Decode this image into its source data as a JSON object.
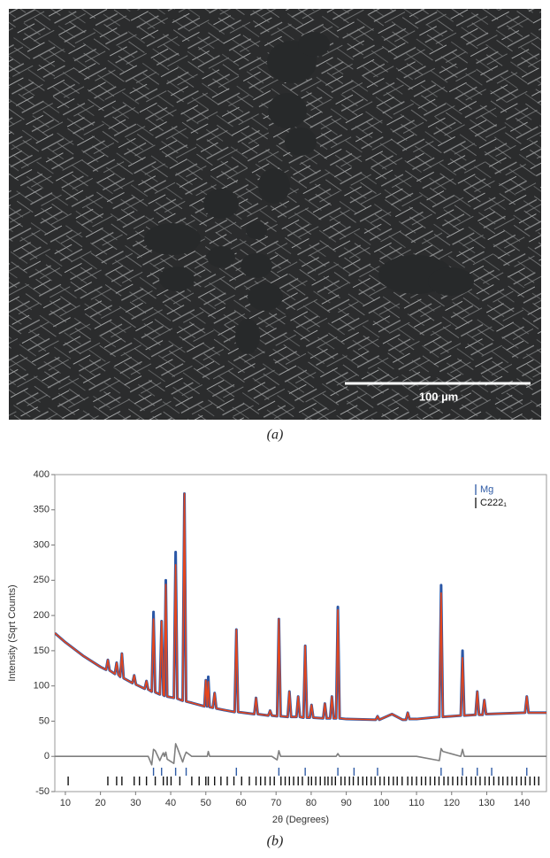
{
  "figure": {
    "panel_a": {
      "caption": "(a)",
      "scale_bar": "100 µm"
    },
    "panel_b": {
      "caption": "(b)"
    }
  },
  "chart_data": {
    "type": "line",
    "x_label": "2θ (Degrees)",
    "y_label": "Intensity (Sqrt Counts)",
    "xlim": [
      7,
      147
    ],
    "xticks": [
      10,
      20,
      30,
      40,
      50,
      60,
      70,
      80,
      90,
      100,
      110,
      120,
      130,
      140
    ],
    "ylim": [
      -50,
      400
    ],
    "yticks": [
      -50,
      0,
      50,
      100,
      150,
      200,
      250,
      300,
      350,
      400
    ],
    "x": [
      7,
      10,
      15,
      20,
      21.6,
      22.1,
      22.6,
      24.1,
      24.6,
      25.1,
      25.6,
      26.1,
      26.6,
      29.1,
      29.6,
      30.1,
      32.6,
      33.1,
      33.6,
      34.6,
      35.1,
      35.6,
      36.9,
      37.4,
      37.9,
      38.2,
      38.6,
      39.0,
      40.9,
      41.4,
      41.9,
      43.4,
      43.9,
      44.4,
      46,
      49.6,
      50.0,
      50.4,
      50.7,
      51.1,
      52.0,
      52.5,
      53.0,
      55,
      58.2,
      58.7,
      59.2,
      63.8,
      64.3,
      64.8,
      67.8,
      68.3,
      68.8,
      70.3,
      70.8,
      71.3,
      73.3,
      73.8,
      74.3,
      75.8,
      76.3,
      76.8,
      77.8,
      78.3,
      78.8,
      79.6,
      80.1,
      80.6,
      83.4,
      83.9,
      84.4,
      85.4,
      85.9,
      86.4,
      87.1,
      87.6,
      88.1,
      90,
      98.4,
      98.9,
      99.4,
      103,
      106,
      107.0,
      107.5,
      108.0,
      110,
      116.5,
      117.0,
      117.5,
      122.6,
      123.1,
      123.6,
      126.8,
      127.3,
      127.8,
      128.8,
      129.3,
      129.8,
      135,
      140.9,
      141.4,
      141.9,
      147
    ],
    "series": [
      {
        "color": "#2b57a6",
        "width": 3,
        "values": [
          175,
          162,
          143,
          127,
          123,
          137,
          122,
          117,
          133,
          116,
          113,
          146,
          111,
          104,
          115,
          102,
          96,
          107,
          95,
          92,
          205,
          91,
          88,
          192,
          87,
          86,
          250,
          85,
          83,
          290,
          82,
          79,
          373,
          78,
          76,
          71,
          108,
          71,
          113,
          70,
          69,
          90,
          68,
          66,
          63,
          180,
          63,
          60,
          83,
          60,
          58,
          65,
          58,
          57,
          195,
          57,
          56,
          92,
          56,
          56,
          85,
          56,
          55,
          157,
          55,
          55,
          73,
          55,
          54,
          75,
          54,
          54,
          85,
          54,
          54,
          212,
          54,
          53,
          52,
          57,
          52,
          60,
          52,
          52,
          62,
          53,
          53,
          56,
          243,
          56,
          58,
          150,
          58,
          59,
          92,
          59,
          59,
          80,
          60,
          61,
          62,
          85,
          62,
          62
        ]
      },
      {
        "color": "#e5461d",
        "width": 1.6,
        "values": [
          175,
          162,
          143,
          127,
          123,
          137,
          122,
          117,
          133,
          116,
          113,
          146,
          111,
          104,
          115,
          102,
          96,
          107,
          95,
          92,
          195,
          91,
          88,
          192,
          87,
          86,
          244,
          85,
          83,
          272,
          82,
          79,
          373,
          78,
          76,
          71,
          108,
          71,
          106,
          70,
          69,
          90,
          68,
          66,
          63,
          180,
          63,
          60,
          83,
          60,
          58,
          65,
          58,
          57,
          195,
          57,
          56,
          92,
          56,
          56,
          85,
          56,
          55,
          157,
          55,
          55,
          73,
          55,
          54,
          75,
          54,
          54,
          85,
          54,
          54,
          208,
          54,
          53,
          52,
          57,
          52,
          60,
          52,
          52,
          62,
          53,
          53,
          56,
          232,
          56,
          58,
          140,
          58,
          59,
          92,
          59,
          59,
          80,
          60,
          61,
          62,
          85,
          62,
          62
        ]
      },
      {
        "color": "#7f7f7f",
        "width": 1.6,
        "values": [
          0,
          0,
          0,
          0,
          0,
          0,
          0,
          0,
          0,
          0,
          0,
          0,
          0,
          0,
          0,
          0,
          0,
          0,
          0,
          -12,
          10,
          8,
          -6,
          0,
          5,
          0,
          6,
          -4,
          -10,
          18,
          12,
          -8,
          0,
          6,
          0,
          0,
          0,
          0,
          7,
          0,
          0,
          0,
          0,
          0,
          0,
          0,
          0,
          0,
          0,
          0,
          0,
          0,
          0,
          -5,
          8,
          0,
          0,
          0,
          0,
          0,
          0,
          0,
          0,
          0,
          0,
          0,
          0,
          0,
          0,
          0,
          0,
          0,
          0,
          0,
          0,
          4,
          0,
          0,
          0,
          0,
          0,
          0,
          0,
          0,
          0,
          0,
          0,
          -6,
          11,
          7,
          0,
          10,
          0,
          0,
          0,
          0,
          0,
          0,
          0,
          0,
          0,
          0,
          0,
          0
        ]
      }
    ],
    "reflections": [
      {
        "name": "Mg",
        "color": "#2f5ba5",
        "positions": [
          35.1,
          37.4,
          41.4,
          44.4,
          58.7,
          70.8,
          78.3,
          87.6,
          92.2,
          98.9,
          117.0,
          123.1,
          127.3,
          131.4,
          141.4
        ]
      },
      {
        "name": "C222₁",
        "color": "#111111",
        "positions": [
          10.8,
          22.1,
          24.6,
          26.1,
          29.6,
          31.1,
          33.1,
          35.6,
          37.9,
          39.0,
          40.1,
          42.6,
          46.0,
          48.1,
          50.0,
          50.7,
          52.5,
          54.3,
          56.1,
          58.0,
          60.2,
          62.4,
          64.3,
          65.6,
          66.9,
          68.3,
          69.5,
          71.4,
          72.6,
          73.8,
          75.0,
          76.3,
          77.5,
          79.2,
          80.1,
          81.3,
          82.6,
          83.9,
          84.8,
          85.9,
          86.9,
          88.5,
          89.6,
          90.9,
          92.0,
          93.4,
          94.7,
          95.8,
          97.1,
          98.2,
          99.6,
          100.8,
          102.1,
          103.4,
          104.5,
          105.9,
          107.5,
          108.7,
          110.0,
          111.4,
          112.6,
          113.9,
          115.2,
          116.4,
          117.8,
          119.0,
          120.3,
          121.7,
          122.9,
          124.2,
          125.6,
          126.8,
          128.1,
          129.5,
          130.7,
          132.0,
          133.4,
          134.6,
          135.9,
          137.2,
          138.5,
          139.8,
          141.0,
          142.3,
          143.6,
          144.8
        ]
      }
    ],
    "legend": "upper right"
  }
}
